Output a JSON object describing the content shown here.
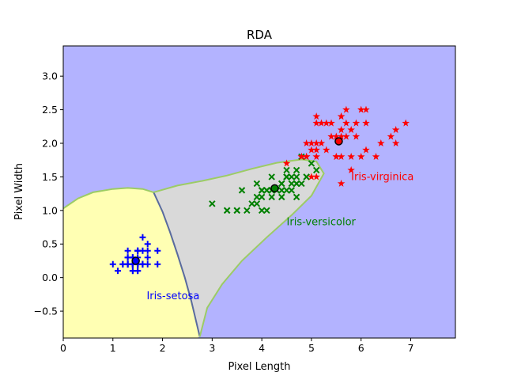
{
  "chart_data": {
    "type": "scatter",
    "title": "RDA",
    "xlabel": "Pixel Length",
    "ylabel": "Pixel Width",
    "xlim": [
      0,
      7.9
    ],
    "ylim": [
      -0.9,
      3.45
    ],
    "xticks": [
      "0",
      "1",
      "2",
      "3",
      "4",
      "5",
      "6",
      "7"
    ],
    "yticks": [
      "−0.5",
      "0.0",
      "0.5",
      "1.0",
      "1.5",
      "2.0",
      "2.5",
      "3.0"
    ],
    "background_color": "#b3b3ff",
    "regions": [
      {
        "class": "Iris-setosa",
        "color": "#ffffb3"
      },
      {
        "class": "Iris-versicolor",
        "color": "#d9d9d9"
      },
      {
        "class": "Iris-virginica",
        "color": "#b3b3ff"
      }
    ],
    "boundary_colors": [
      "#9ccc65",
      "#5a6b9e"
    ],
    "series": [
      {
        "name": "Iris-setosa",
        "marker": "+",
        "color": "#0000ff",
        "points": [
          [
            1.4,
            0.2
          ],
          [
            1.4,
            0.2
          ],
          [
            1.3,
            0.2
          ],
          [
            1.5,
            0.2
          ],
          [
            1.4,
            0.2
          ],
          [
            1.7,
            0.4
          ],
          [
            1.4,
            0.3
          ],
          [
            1.5,
            0.2
          ],
          [
            1.4,
            0.2
          ],
          [
            1.5,
            0.1
          ],
          [
            1.5,
            0.2
          ],
          [
            1.6,
            0.2
          ],
          [
            1.4,
            0.1
          ],
          [
            1.1,
            0.1
          ],
          [
            1.2,
            0.2
          ],
          [
            1.5,
            0.4
          ],
          [
            1.3,
            0.4
          ],
          [
            1.4,
            0.3
          ],
          [
            1.7,
            0.3
          ],
          [
            1.5,
            0.3
          ],
          [
            1.7,
            0.2
          ],
          [
            1.5,
            0.4
          ],
          [
            1.0,
            0.2
          ],
          [
            1.7,
            0.5
          ],
          [
            1.9,
            0.2
          ],
          [
            1.6,
            0.2
          ],
          [
            1.6,
            0.4
          ],
          [
            1.5,
            0.2
          ],
          [
            1.4,
            0.2
          ],
          [
            1.6,
            0.2
          ],
          [
            1.6,
            0.2
          ],
          [
            1.5,
            0.4
          ],
          [
            1.5,
            0.1
          ],
          [
            1.4,
            0.2
          ],
          [
            1.5,
            0.2
          ],
          [
            1.2,
            0.2
          ],
          [
            1.3,
            0.2
          ],
          [
            1.4,
            0.1
          ],
          [
            1.3,
            0.2
          ],
          [
            1.5,
            0.2
          ],
          [
            1.3,
            0.3
          ],
          [
            1.3,
            0.3
          ],
          [
            1.3,
            0.2
          ],
          [
            1.6,
            0.6
          ],
          [
            1.9,
            0.4
          ],
          [
            1.4,
            0.3
          ],
          [
            1.6,
            0.2
          ],
          [
            1.4,
            0.2
          ],
          [
            1.5,
            0.2
          ],
          [
            1.4,
            0.2
          ]
        ]
      },
      {
        "name": "Iris-versicolor",
        "marker": "x",
        "color": "#008000",
        "points": [
          [
            4.7,
            1.4
          ],
          [
            4.5,
            1.5
          ],
          [
            4.9,
            1.5
          ],
          [
            4.0,
            1.3
          ],
          [
            4.6,
            1.5
          ],
          [
            4.5,
            1.3
          ],
          [
            4.7,
            1.6
          ],
          [
            3.3,
            1.0
          ],
          [
            4.6,
            1.3
          ],
          [
            3.9,
            1.4
          ],
          [
            3.5,
            1.0
          ],
          [
            4.2,
            1.5
          ],
          [
            4.0,
            1.0
          ],
          [
            4.7,
            1.4
          ],
          [
            3.6,
            1.3
          ],
          [
            4.4,
            1.4
          ],
          [
            4.5,
            1.5
          ],
          [
            4.1,
            1.0
          ],
          [
            4.5,
            1.5
          ],
          [
            3.9,
            1.1
          ],
          [
            4.8,
            1.8
          ],
          [
            4.0,
            1.3
          ],
          [
            4.9,
            1.5
          ],
          [
            4.7,
            1.2
          ],
          [
            4.3,
            1.3
          ],
          [
            4.4,
            1.4
          ],
          [
            4.8,
            1.4
          ],
          [
            5.0,
            1.7
          ],
          [
            4.5,
            1.5
          ],
          [
            3.5,
            1.0
          ],
          [
            3.8,
            1.1
          ],
          [
            3.7,
            1.0
          ],
          [
            3.9,
            1.2
          ],
          [
            5.1,
            1.6
          ],
          [
            4.5,
            1.5
          ],
          [
            4.5,
            1.6
          ],
          [
            4.7,
            1.5
          ],
          [
            4.4,
            1.3
          ],
          [
            4.1,
            1.3
          ],
          [
            4.0,
            1.3
          ],
          [
            4.4,
            1.2
          ],
          [
            4.6,
            1.4
          ],
          [
            4.0,
            1.2
          ],
          [
            3.3,
            1.0
          ],
          [
            4.2,
            1.3
          ],
          [
            4.2,
            1.2
          ],
          [
            4.2,
            1.3
          ],
          [
            4.3,
            1.3
          ],
          [
            3.0,
            1.1
          ],
          [
            4.1,
            1.3
          ]
        ]
      },
      {
        "name": "Iris-virginica",
        "marker": "*",
        "color": "#ff0000",
        "points": [
          [
            6.0,
            2.5
          ],
          [
            5.1,
            1.9
          ],
          [
            5.9,
            2.1
          ],
          [
            5.6,
            1.8
          ],
          [
            5.8,
            2.2
          ],
          [
            6.6,
            2.1
          ],
          [
            4.5,
            1.7
          ],
          [
            6.3,
            1.8
          ],
          [
            5.8,
            1.8
          ],
          [
            6.1,
            2.5
          ],
          [
            5.1,
            2.0
          ],
          [
            5.3,
            1.9
          ],
          [
            5.5,
            2.1
          ],
          [
            5.0,
            2.0
          ],
          [
            5.1,
            2.4
          ],
          [
            5.3,
            2.3
          ],
          [
            5.5,
            1.8
          ],
          [
            6.7,
            2.2
          ],
          [
            6.9,
            2.3
          ],
          [
            5.0,
            1.5
          ],
          [
            5.7,
            2.3
          ],
          [
            4.9,
            2.0
          ],
          [
            6.7,
            2.0
          ],
          [
            4.9,
            1.8
          ],
          [
            5.7,
            2.1
          ],
          [
            6.0,
            1.8
          ],
          [
            4.8,
            1.8
          ],
          [
            4.9,
            1.8
          ],
          [
            5.6,
            2.1
          ],
          [
            5.8,
            1.6
          ],
          [
            6.1,
            1.9
          ],
          [
            6.4,
            2.0
          ],
          [
            5.6,
            2.2
          ],
          [
            5.1,
            1.5
          ],
          [
            5.6,
            1.4
          ],
          [
            6.1,
            2.3
          ],
          [
            5.6,
            2.4
          ],
          [
            5.5,
            1.8
          ],
          [
            4.8,
            1.8
          ],
          [
            5.4,
            2.1
          ],
          [
            5.6,
            2.4
          ],
          [
            5.1,
            2.3
          ],
          [
            5.9,
            2.3
          ],
          [
            5.7,
            2.5
          ],
          [
            5.2,
            2.3
          ],
          [
            5.0,
            1.9
          ],
          [
            5.2,
            2.0
          ],
          [
            5.4,
            2.3
          ],
          [
            5.1,
            1.8
          ]
        ]
      }
    ],
    "means": [
      {
        "class": "Iris-setosa",
        "x": 1.46,
        "y": 0.25,
        "color": "#0000ff"
      },
      {
        "class": "Iris-versicolor",
        "x": 4.26,
        "y": 1.33,
        "color": "#008000"
      },
      {
        "class": "Iris-virginica",
        "x": 5.55,
        "y": 2.03,
        "color": "#ff0000"
      }
    ],
    "annotations": [
      {
        "text": "Iris-setosa",
        "x": 1.68,
        "y": -0.32,
        "color": "#0000ff"
      },
      {
        "text": "Iris-versicolor",
        "x": 4.5,
        "y": 0.78,
        "color": "#008000"
      },
      {
        "text": "Iris-virginica",
        "x": 5.8,
        "y": 1.45,
        "color": "#ff0000"
      }
    ]
  }
}
